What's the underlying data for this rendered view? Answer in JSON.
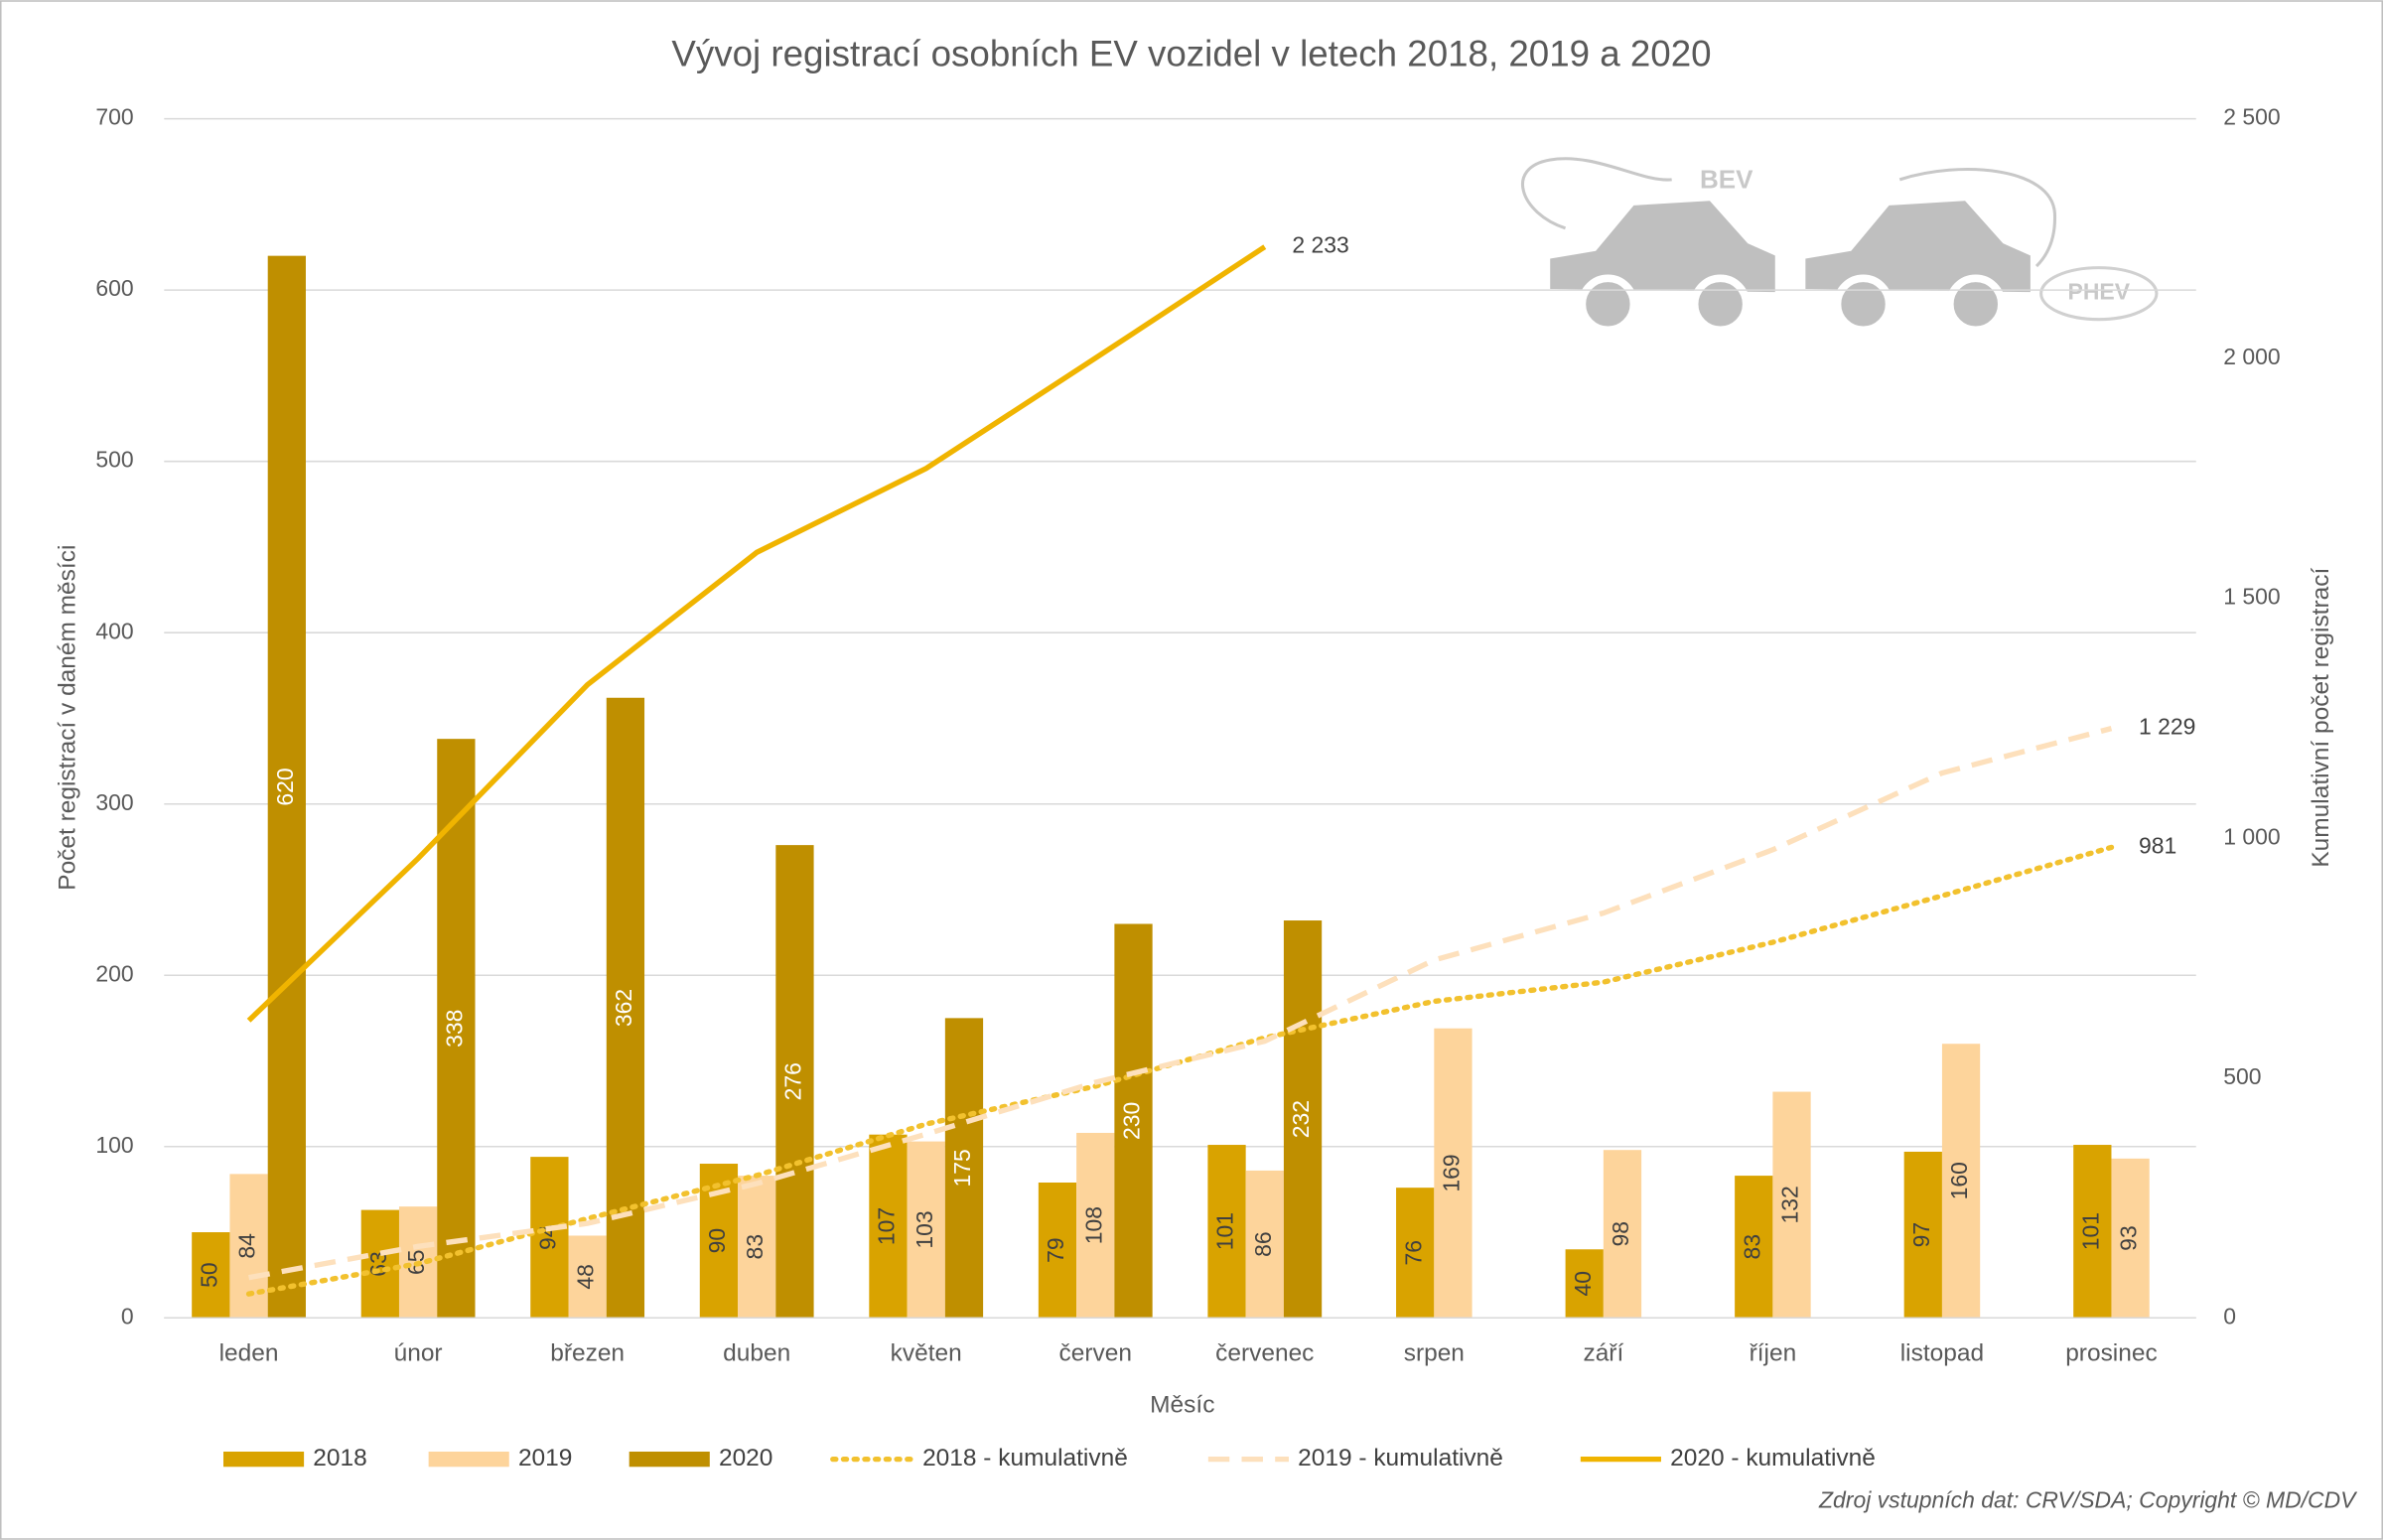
{
  "chart_data": {
    "type": "bar",
    "title": "Vývoj registrací osobních EV vozidel v letech 2018, 2019 a 2020",
    "x_label": "Měsíc",
    "y_label": "Počet registrací v daném měsíci",
    "y2_label": "Kumulativní počet registrací",
    "source": "Zdroj vstupních dat: CRV/SDA; Copyright © MD/CDV",
    "annotations": [
      "BEV",
      "PHEV"
    ],
    "categories": [
      "leden",
      "únor",
      "březen",
      "duben",
      "květen",
      "červen",
      "červenec",
      "srpen",
      "září",
      "říjen",
      "listopad",
      "prosinec"
    ],
    "ylim": [
      0,
      700
    ],
    "yticks": [
      0,
      100,
      200,
      300,
      400,
      500,
      600,
      700
    ],
    "y2lim": [
      0,
      2500
    ],
    "y2ticks": [
      0,
      500,
      {
        "value": 1000,
        "label": "1 000"
      },
      {
        "value": 1500,
        "label": "1 500"
      },
      {
        "value": 2000,
        "label": "2 000"
      },
      {
        "value": 2500,
        "label": "2 500"
      }
    ],
    "grid": true,
    "legend": "bottom",
    "series": [
      {
        "name": "2018",
        "type": "bar",
        "color": "#d9a300",
        "label_color": "#404040",
        "values": [
          50,
          63,
          94,
          90,
          107,
          79,
          101,
          76,
          40,
          83,
          97,
          101
        ]
      },
      {
        "name": "2019",
        "type": "bar",
        "color": "#fdd49b",
        "label_color": "#404040",
        "values": [
          84,
          65,
          48,
          83,
          103,
          108,
          86,
          169,
          98,
          132,
          160,
          93
        ]
      },
      {
        "name": "2020",
        "type": "bar",
        "color": "#bf8f00",
        "label_color": "#ffffff",
        "values": [
          620,
          338,
          362,
          276,
          175,
          230,
          232,
          null,
          null,
          null,
          null,
          null
        ]
      },
      {
        "name": "2018 - kumulativně",
        "type": "line",
        "axis": "y2",
        "dash": "dotted",
        "color": "#f2c12e",
        "values": [
          50,
          113,
          207,
          297,
          404,
          483,
          584,
          660,
          700,
          783,
          880,
          981
        ],
        "value_labels": [
          null,
          null,
          null,
          null,
          null,
          null,
          null,
          null,
          null,
          null,
          null,
          "981"
        ]
      },
      {
        "name": "2019 - kumulativně",
        "type": "line",
        "axis": "y2",
        "dash": "dashed",
        "color": "#fde0bc",
        "values": [
          84,
          149,
          197,
          280,
          383,
          491,
          577,
          746,
          844,
          976,
          1136,
          1229
        ],
        "value_labels": [
          null,
          null,
          null,
          null,
          null,
          null,
          null,
          null,
          null,
          null,
          null,
          "1 229"
        ]
      },
      {
        "name": "2020 - kumulativně",
        "type": "line",
        "axis": "y2",
        "dash": "solid",
        "color": "#f0b400",
        "values": [
          620,
          958,
          1320,
          1596,
          1771,
          2001,
          2233,
          null,
          null,
          null,
          null,
          null
        ],
        "value_labels": [
          null,
          null,
          null,
          null,
          null,
          null,
          "2 233",
          null,
          null,
          null,
          null,
          null
        ]
      }
    ]
  }
}
